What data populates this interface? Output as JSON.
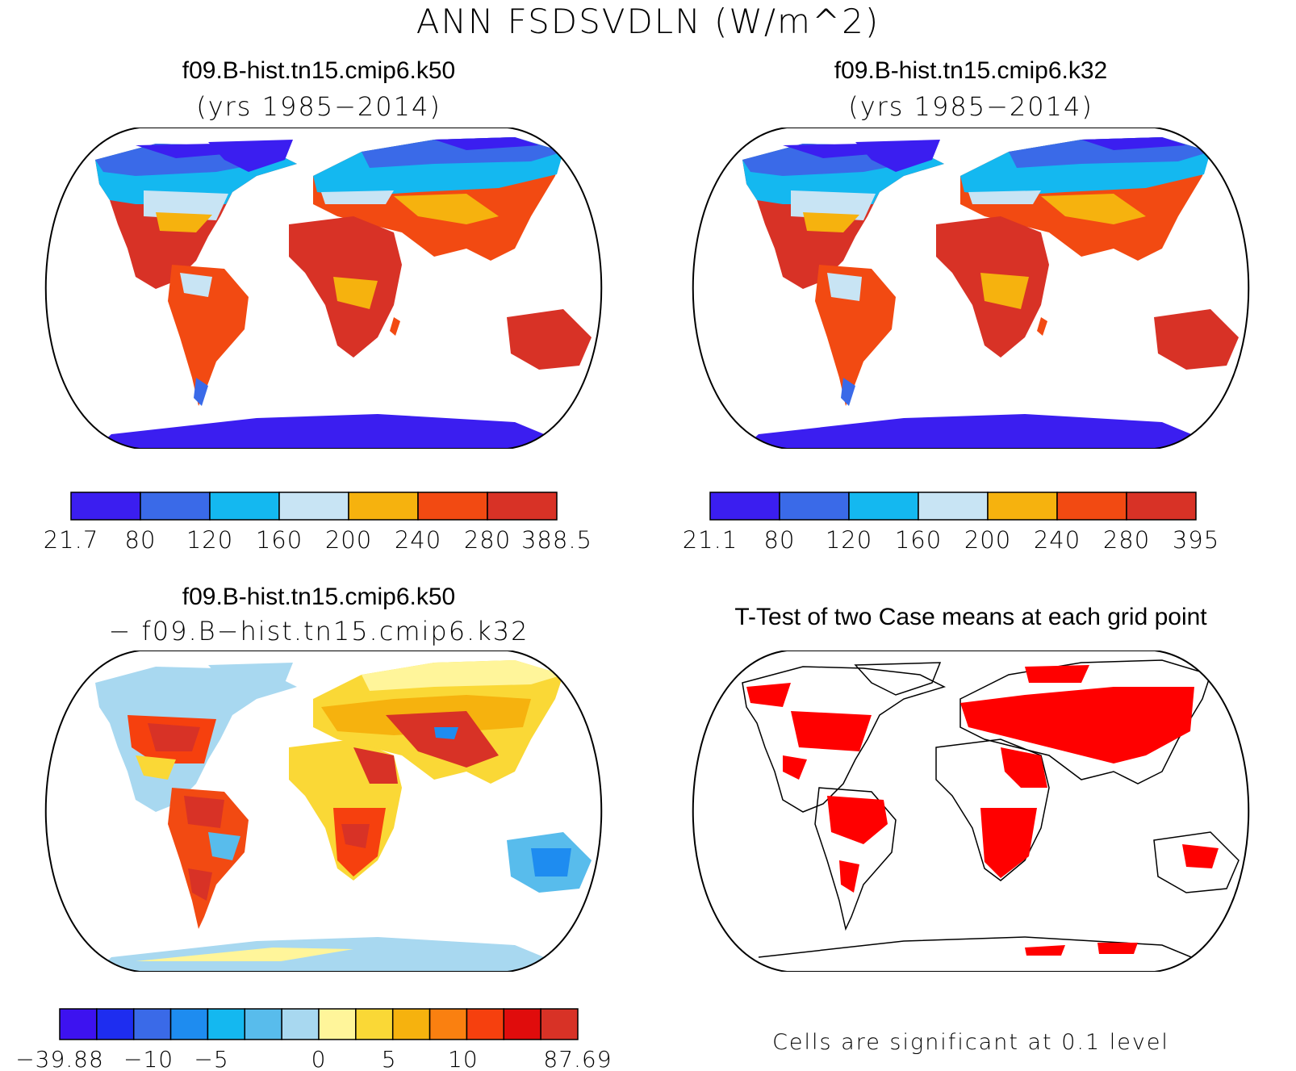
{
  "figure_title": "ANN FSDSVDLN (W/m^2)",
  "panels": {
    "top_left": {
      "title": "f09.B-hist.tn15.cmip6.k50",
      "subtitle": "(yrs 1985−2014)",
      "colorbar": {
        "labels": [
          "21.7",
          "80",
          "120",
          "160",
          "200",
          "240",
          "280",
          "388.5"
        ],
        "colors": [
          "#3b1ef0",
          "#3a6ae8",
          "#14b8f0",
          "#c8e4f4",
          "#f6b20e",
          "#f24a12",
          "#d83226"
        ]
      }
    },
    "top_right": {
      "title": "f09.B-hist.tn15.cmip6.k32",
      "subtitle": "(yrs 1985−2014)",
      "colorbar": {
        "labels": [
          "21.1",
          "80",
          "120",
          "160",
          "200",
          "240",
          "280",
          "395"
        ],
        "colors": [
          "#3b1ef0",
          "#3a6ae8",
          "#14b8f0",
          "#c8e4f4",
          "#f6b20e",
          "#f24a12",
          "#d83226"
        ]
      }
    },
    "bottom_left": {
      "title": "f09.B-hist.tn15.cmip6.k50",
      "subtitle": "− f09.B−hist.tn15.cmip6.k32",
      "colorbar": {
        "labels": [
          "−39.88",
          "−10",
          "−5",
          "0",
          "5",
          "10",
          "87.69"
        ],
        "colors": [
          "#3d12f0",
          "#1e2df0",
          "#3a6ae8",
          "#1e8cf0",
          "#14b8f0",
          "#58bcec",
          "#a8d8f0",
          "#fff59a",
          "#fad836",
          "#f6b20e",
          "#fa8010",
          "#f6400e",
          "#e00c0c",
          "#d83226"
        ]
      }
    },
    "bottom_right": {
      "title": "T-Test of two Case means at each grid point",
      "footnote": "Cells are significant at 0.1 level",
      "significance_color": "#ff0000"
    }
  }
}
